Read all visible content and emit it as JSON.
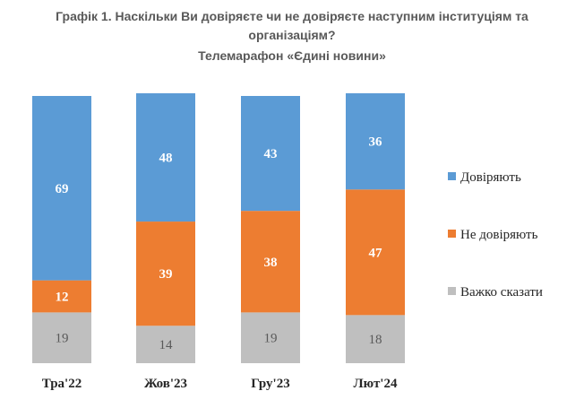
{
  "chart_data": {
    "type": "bar",
    "stacked": true,
    "title_line1": "Графік 1. Наскільки Ви довіряєте чи не довіряєте наступним інституціям та",
    "title_line2": "організаціям?",
    "subtitle": "Телемарафон «Єдині новини»",
    "categories": [
      "Тра'22",
      "Жов'23",
      "Гру'23",
      "Лют'24"
    ],
    "series": [
      {
        "name": "Важко сказати",
        "values": [
          19,
          14,
          19,
          18
        ],
        "color": "#bfbfbf",
        "label_color": "#595959"
      },
      {
        "name": "Не довіряють",
        "values": [
          12,
          39,
          38,
          47
        ],
        "color": "#ed7d31",
        "label_color": "#ffffff"
      },
      {
        "name": "Довіряють",
        "values": [
          69,
          48,
          43,
          36
        ],
        "color": "#5b9bd5",
        "label_color": "#ffffff"
      }
    ],
    "legend_order": [
      "Довіряють",
      "Не довіряють",
      "Важко сказати"
    ],
    "ylim": [
      0,
      100
    ],
    "grid": false,
    "legend_position": "right"
  }
}
